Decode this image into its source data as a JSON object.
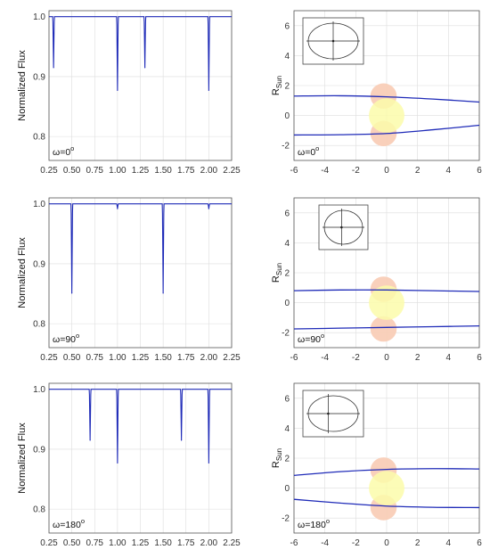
{
  "chart_data": [
    {
      "type": "line",
      "ylabel": "Normalized Flux",
      "annotation": {
        "base": "ω=0",
        "sup": "o"
      },
      "xlim": [
        0.25,
        2.25
      ],
      "ylim": [
        0.76,
        1.01
      ],
      "xticks": [
        "0.25",
        "0.50",
        "0.75",
        "1.00",
        "1.25",
        "1.50",
        "1.75",
        "2.00",
        "2.25"
      ],
      "yticks": [
        "0.8",
        "0.9",
        "1.0"
      ],
      "baseline": 1.0,
      "dips": [
        {
          "x": 0.3,
          "y": 0.915
        },
        {
          "x": 1.0,
          "y": 0.877
        },
        {
          "x": 1.3,
          "y": 0.915
        },
        {
          "x": 2.0,
          "y": 0.877
        }
      ]
    },
    {
      "type": "line",
      "ylabel": "Normalized Flux",
      "annotation": {
        "base": "ω=90",
        "sup": "o"
      },
      "xlim": [
        0.25,
        2.25
      ],
      "ylim": [
        0.76,
        1.01
      ],
      "xticks": [
        "0.25",
        "0.50",
        "0.75",
        "1.00",
        "1.25",
        "1.50",
        "1.75",
        "2.00",
        "2.25"
      ],
      "yticks": [
        "0.8",
        "0.9",
        "1.0"
      ],
      "baseline": 1.0,
      "dips": [
        {
          "x": 0.5,
          "y": 0.851
        },
        {
          "x": 1.0,
          "y": 0.992
        },
        {
          "x": 1.5,
          "y": 0.851
        },
        {
          "x": 2.0,
          "y": 0.992
        }
      ]
    },
    {
      "type": "line",
      "ylabel": "Normalized Flux",
      "annotation": {
        "base": "ω=180",
        "sup": "o"
      },
      "xlim": [
        0.25,
        2.25
      ],
      "ylim": [
        0.76,
        1.01
      ],
      "xticks": [
        "0.25",
        "0.50",
        "0.75",
        "1.00",
        "1.25",
        "1.50",
        "1.75",
        "2.00",
        "2.25"
      ],
      "yticks": [
        "0.8",
        "0.9",
        "1.0"
      ],
      "baseline": 1.0,
      "dips": [
        {
          "x": 0.7,
          "y": 0.915
        },
        {
          "x": 1.0,
          "y": 0.877
        },
        {
          "x": 1.7,
          "y": 0.915
        },
        {
          "x": 2.0,
          "y": 0.877
        }
      ]
    },
    {
      "type": "line",
      "ylabel": {
        "base": "R",
        "sub": "Sun"
      },
      "annotation": {
        "base": "ω=0",
        "sup": "o"
      },
      "xlim": [
        -6,
        6
      ],
      "ylim": [
        -3,
        7
      ],
      "xticks": [
        "-6",
        "-4",
        "-2",
        "0",
        "2",
        "4",
        "6"
      ],
      "yticks": [
        "-2",
        "0",
        "2",
        "4",
        "6"
      ],
      "upper_orbit": [
        {
          "x": -6,
          "y": 1.3
        },
        {
          "x": -3,
          "y": 1.32
        },
        {
          "x": 0,
          "y": 1.25
        },
        {
          "x": 3,
          "y": 1.1
        },
        {
          "x": 6,
          "y": 0.9
        }
      ],
      "lower_orbit": [
        {
          "x": -6,
          "y": -1.3
        },
        {
          "x": -3,
          "y": -1.28
        },
        {
          "x": 0,
          "y": -1.2
        },
        {
          "x": 3,
          "y": -0.95
        },
        {
          "x": 6,
          "y": -0.65
        }
      ],
      "stars": [
        {
          "x": -0.2,
          "y": 1.3,
          "r": 0.85,
          "color": "#f9cdb7"
        },
        {
          "x": -0.2,
          "y": -1.2,
          "r": 0.85,
          "color": "#f9cdb7"
        },
        {
          "x": 0.0,
          "y": 0.0,
          "r": 1.15,
          "color": "#fbfbaa"
        }
      ],
      "inset": {
        "cross_x": 0.5,
        "cross_y": 0.5
      }
    },
    {
      "type": "line",
      "ylabel": {
        "base": "R",
        "sub": "Sun"
      },
      "annotation": {
        "base": "ω=90",
        "sup": "o"
      },
      "xlim": [
        -6,
        6
      ],
      "ylim": [
        -3,
        7
      ],
      "xticks": [
        "-6",
        "-4",
        "-2",
        "0",
        "2",
        "4",
        "6"
      ],
      "yticks": [
        "-2",
        "0",
        "2",
        "4",
        "6"
      ],
      "upper_orbit": [
        {
          "x": -6,
          "y": 0.8
        },
        {
          "x": -3,
          "y": 0.85
        },
        {
          "x": 0,
          "y": 0.85
        },
        {
          "x": 3,
          "y": 0.8
        },
        {
          "x": 6,
          "y": 0.75
        }
      ],
      "lower_orbit": [
        {
          "x": -6,
          "y": -1.75
        },
        {
          "x": -3,
          "y": -1.7
        },
        {
          "x": 0,
          "y": -1.65
        },
        {
          "x": 3,
          "y": -1.6
        },
        {
          "x": 6,
          "y": -1.55
        }
      ],
      "stars": [
        {
          "x": -0.2,
          "y": 0.9,
          "r": 0.85,
          "color": "#f9cdb7"
        },
        {
          "x": -0.2,
          "y": -1.75,
          "r": 0.85,
          "color": "#f9cdb7"
        },
        {
          "x": 0.0,
          "y": 0.0,
          "r": 1.15,
          "color": "#fbfbaa"
        }
      ],
      "inset": {
        "cross_x": 0.45,
        "cross_y": 0.5
      }
    },
    {
      "type": "line",
      "ylabel": {
        "base": "R",
        "sub": "Sun"
      },
      "annotation": {
        "base": "ω=180",
        "sup": "o"
      },
      "xlim": [
        -6,
        6
      ],
      "ylim": [
        -3,
        7
      ],
      "xticks": [
        "-6",
        "-4",
        "-2",
        "0",
        "2",
        "4",
        "6"
      ],
      "yticks": [
        "-2",
        "0",
        "2",
        "4",
        "6"
      ],
      "upper_orbit": [
        {
          "x": -6,
          "y": 0.85
        },
        {
          "x": -3,
          "y": 1.1
        },
        {
          "x": 0,
          "y": 1.25
        },
        {
          "x": 3,
          "y": 1.3
        },
        {
          "x": 6,
          "y": 1.28
        }
      ],
      "lower_orbit": [
        {
          "x": -6,
          "y": -0.75
        },
        {
          "x": -3,
          "y": -1.0
        },
        {
          "x": 0,
          "y": -1.2
        },
        {
          "x": 3,
          "y": -1.28
        },
        {
          "x": 6,
          "y": -1.3
        }
      ],
      "stars": [
        {
          "x": -0.2,
          "y": 1.2,
          "r": 0.85,
          "color": "#f9cdb7"
        },
        {
          "x": -0.2,
          "y": -1.3,
          "r": 0.85,
          "color": "#f9cdb7"
        },
        {
          "x": 0.0,
          "y": 0.0,
          "r": 1.15,
          "color": "#fbfbaa"
        }
      ],
      "inset": {
        "cross_x": 0.4,
        "cross_y": 0.5
      }
    }
  ],
  "colors": {
    "curve": "#1f2bb8",
    "grid": "#dddddd",
    "axis": "#555555"
  }
}
